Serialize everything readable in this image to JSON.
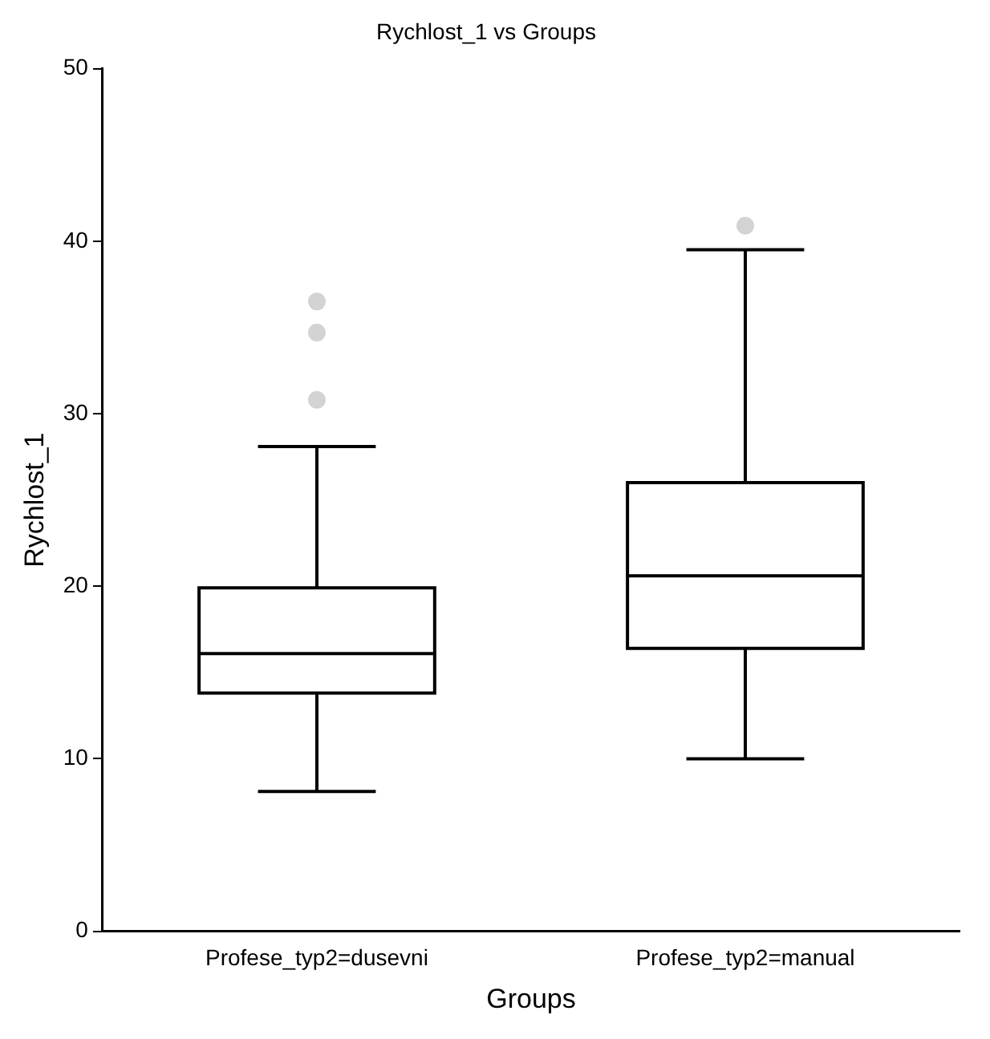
{
  "chart_data": {
    "type": "box",
    "title": "Rychlost_1 vs Groups",
    "xlabel": "Groups",
    "ylabel": "Rychlost_1",
    "categories": [
      "Profese_typ2=dusevni",
      "Profese_typ2=manual"
    ],
    "boxes": [
      {
        "low": 8.1,
        "q1": 13.8,
        "median": 16.1,
        "q3": 19.9,
        "high": 28.1,
        "outliers": [
          30.8,
          34.7,
          36.5
        ]
      },
      {
        "low": 10.0,
        "q1": 16.4,
        "median": 20.6,
        "q3": 26.0,
        "high": 39.5,
        "outliers": [
          40.9
        ]
      }
    ],
    "color": "#000000",
    "ylim": [
      0,
      50
    ],
    "yticks": [
      0,
      10,
      20,
      30,
      40,
      50
    ],
    "grid": false,
    "legend": false
  }
}
